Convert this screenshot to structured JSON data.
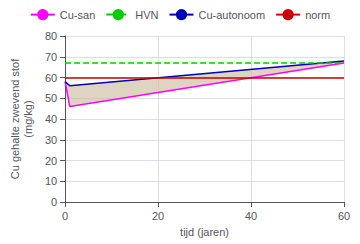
{
  "chart_data": {
    "type": "line",
    "xlabel": "tijd (jaren)",
    "ylabel": "Cu gehalte zwevend stof\n(mg/kg)",
    "x": [
      0,
      1,
      60
    ],
    "series": [
      {
        "name": "Cu-san",
        "color": "#ff00ff",
        "line_style": "solid",
        "values": [
          58,
          46,
          67
        ]
      },
      {
        "name": "HVN",
        "type": "hline",
        "color": "#00cc00",
        "line_style": "dashed",
        "y": 67
      },
      {
        "name": "Cu-autonoom",
        "color": "#0000bb",
        "line_style": "solid",
        "values": [
          58,
          56,
          68
        ]
      },
      {
        "name": "norm",
        "type": "hline",
        "color": "#cc0000",
        "line_style": "solid",
        "y": 60
      }
    ],
    "fill": {
      "between": [
        "Cu-san",
        "Cu-autonoom"
      ],
      "color": "#c8b898"
    },
    "xlim": [
      0,
      60
    ],
    "xticks": [
      0,
      20,
      40,
      60
    ],
    "ylim": [
      0,
      80
    ],
    "yticks": [
      0,
      10,
      20,
      30,
      40,
      50,
      60,
      70,
      80
    ],
    "grid": true,
    "legend": "top"
  }
}
